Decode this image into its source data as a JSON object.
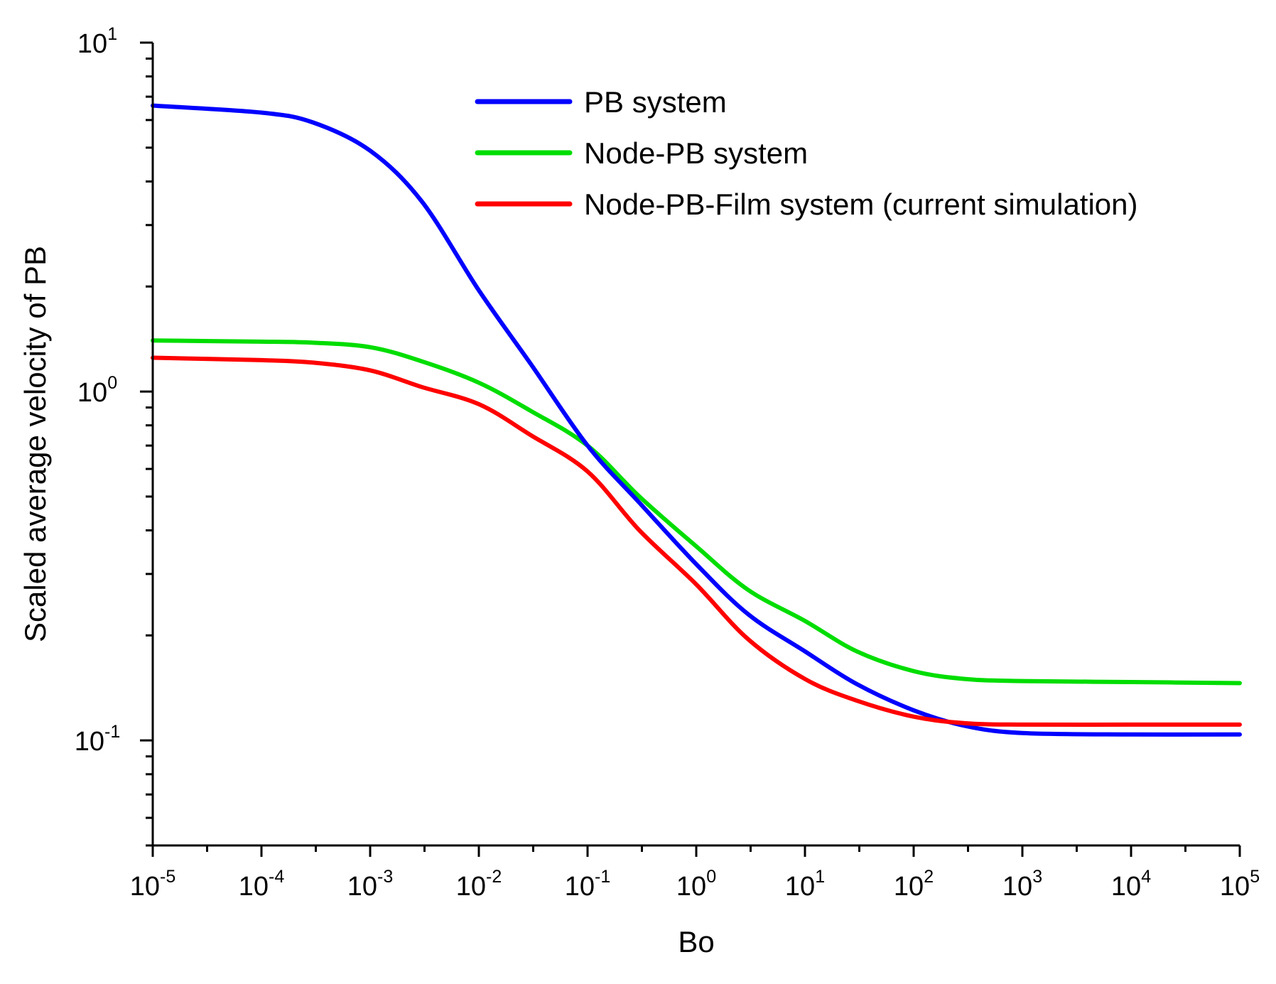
{
  "chart_data": {
    "type": "line",
    "title": "",
    "xlabel": "Bo",
    "ylabel": "Scaled average velocity of PB",
    "xscale": "log",
    "yscale": "log",
    "xlim": [
      1e-05,
      100000.0
    ],
    "ylim": [
      0.05,
      10
    ],
    "x_ticks": [
      {
        "base": "10",
        "exp": "-5"
      },
      {
        "base": "10",
        "exp": "-4"
      },
      {
        "base": "10",
        "exp": "-3"
      },
      {
        "base": "10",
        "exp": "-2"
      },
      {
        "base": "10",
        "exp": "-1"
      },
      {
        "base": "10",
        "exp": "0"
      },
      {
        "base": "10",
        "exp": "1"
      },
      {
        "base": "10",
        "exp": "2"
      },
      {
        "base": "10",
        "exp": "3"
      },
      {
        "base": "10",
        "exp": "4"
      },
      {
        "base": "10",
        "exp": "5"
      }
    ],
    "y_ticks": [
      {
        "base": "10",
        "exp": "-1"
      },
      {
        "base": "10",
        "exp": "0"
      },
      {
        "base": "10",
        "exp": "1"
      }
    ],
    "legend_position": "top-right",
    "series": [
      {
        "name": "PB system",
        "color": "#0000ff",
        "x": [
          1e-05,
          0.0001,
          0.0003,
          0.001,
          0.003,
          0.01,
          0.03,
          0.1,
          0.3,
          1.0,
          3.0,
          10.0,
          30.0,
          100.0,
          300.0,
          1000.0,
          10000.0,
          100000.0
        ],
        "values": [
          6.6,
          6.3,
          5.9,
          4.9,
          3.5,
          1.95,
          1.2,
          0.7,
          0.48,
          0.32,
          0.23,
          0.18,
          0.145,
          0.122,
          0.11,
          0.105,
          0.104,
          0.104
        ]
      },
      {
        "name": "Node-PB system",
        "color": "#00dd00",
        "x": [
          1e-05,
          0.0001,
          0.0003,
          0.001,
          0.003,
          0.01,
          0.03,
          0.1,
          0.3,
          1.0,
          3.0,
          10.0,
          30.0,
          100.0,
          300.0,
          1000.0,
          10000.0,
          100000.0
        ],
        "values": [
          1.4,
          1.39,
          1.38,
          1.34,
          1.22,
          1.06,
          0.88,
          0.7,
          0.5,
          0.36,
          0.27,
          0.22,
          0.18,
          0.158,
          0.15,
          0.148,
          0.147,
          0.146
        ]
      },
      {
        "name": "Node-PB-Film system (current simulation)",
        "color": "#ff0000",
        "x": [
          1e-05,
          0.0001,
          0.0003,
          0.001,
          0.003,
          0.01,
          0.03,
          0.1,
          0.3,
          1.0,
          3.0,
          10.0,
          30.0,
          100.0,
          300.0,
          1000.0,
          10000.0,
          100000.0
        ],
        "values": [
          1.25,
          1.23,
          1.21,
          1.15,
          1.03,
          0.92,
          0.75,
          0.59,
          0.4,
          0.28,
          0.195,
          0.15,
          0.13,
          0.117,
          0.112,
          0.111,
          0.111,
          0.111
        ]
      }
    ]
  }
}
